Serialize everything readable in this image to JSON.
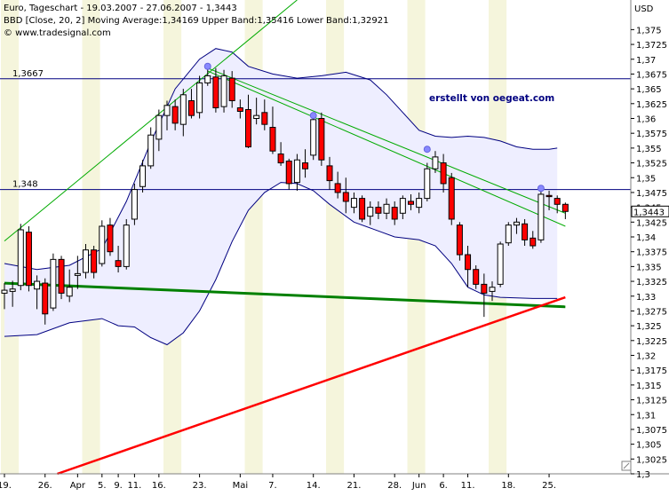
{
  "header": {
    "line1": "Euro, Tageschart - 19.03.2007 - 27.06.2007 - 1,3443",
    "line2": "BBD [Close, 20, 2] Moving Average:1,34169 Upper Band:1,35416 Lower Band:1,32921",
    "line3": "© www.tradesignal.com"
  },
  "annotation": {
    "credit": "erstellt von oegeat.com"
  },
  "colors": {
    "background": "#ffffff",
    "band_fill": "#eeeeff",
    "stripe": "#f5f5dc",
    "bear": "#ff0000",
    "bull": "#ffffff",
    "band_line": "#000080",
    "trend_green_thin": "#00aa00",
    "trend_green_thick": "#008000",
    "trend_red": "#ff0000",
    "pivot": "#8888ff"
  },
  "chart_data": {
    "type": "candlestick",
    "title": "Euro, Tageschart - 19.03.2007 - 27.06.2007 - 1,3443",
    "ylabel": "USD",
    "ylim": [
      1.3,
      1.38
    ],
    "y_ticks": [
      "1,375",
      "1,3725",
      "1,37",
      "1,3675",
      "1,365",
      "1,3625",
      "1,36",
      "1,3575",
      "1,355",
      "1,3525",
      "1,35",
      "1,3475",
      "1,345",
      "1,3425",
      "1,34",
      "1,3375",
      "1,335",
      "1,3325",
      "1,33",
      "1,3275",
      "1,325",
      "1,3225",
      "1,32",
      "1,3175",
      "1,315",
      "1,3125",
      "1,31",
      "1,3075",
      "1,305",
      "1,3025",
      "1,3"
    ],
    "x_tick_labels": [
      {
        "label": "19.",
        "day": 0
      },
      {
        "label": "26.",
        "day": 5
      },
      {
        "label": "Apr",
        "day": 9
      },
      {
        "label": "5.",
        "day": 12
      },
      {
        "label": "9.",
        "day": 14
      },
      {
        "label": "11.",
        "day": 16
      },
      {
        "label": "16.",
        "day": 19
      },
      {
        "label": "23.",
        "day": 24
      },
      {
        "label": "Mai",
        "day": 29
      },
      {
        "label": "7.",
        "day": 33
      },
      {
        "label": "14.",
        "day": 38
      },
      {
        "label": "21.",
        "day": 43
      },
      {
        "label": "28.",
        "day": 48
      },
      {
        "label": "Jun",
        "day": 51
      },
      {
        "label": "6.",
        "day": 54
      },
      {
        "label": "11.",
        "day": 57
      },
      {
        "label": "18.",
        "day": 62
      },
      {
        "label": "25.",
        "day": 67
      }
    ],
    "last_price": {
      "label": "1,3443",
      "value": 1.3443
    },
    "horizontal_lines": [
      {
        "label": "1,3667",
        "value": 1.3667
      },
      {
        "label": "1,348",
        "value": 1.348
      }
    ],
    "candles": [
      [
        1.3305,
        1.3322,
        1.3278,
        1.331
      ],
      [
        1.3308,
        1.3326,
        1.3282,
        1.3312
      ],
      [
        1.3318,
        1.3422,
        1.331,
        1.3412
      ],
      [
        1.3408,
        1.3418,
        1.3308,
        1.3318
      ],
      [
        1.3312,
        1.3335,
        1.3278,
        1.3325
      ],
      [
        1.3322,
        1.333,
        1.3252,
        1.327
      ],
      [
        1.328,
        1.3372,
        1.3275,
        1.3362
      ],
      [
        1.3362,
        1.3368,
        1.3295,
        1.3305
      ],
      [
        1.33,
        1.3345,
        1.329,
        1.3315
      ],
      [
        1.3335,
        1.3368,
        1.3312,
        1.3338
      ],
      [
        1.334,
        1.3388,
        1.333,
        1.3378
      ],
      [
        1.3378,
        1.3385,
        1.333,
        1.334
      ],
      [
        1.3355,
        1.3428,
        1.335,
        1.3418
      ],
      [
        1.342,
        1.3432,
        1.3368,
        1.3375
      ],
      [
        1.336,
        1.3385,
        1.334,
        1.335
      ],
      [
        1.335,
        1.343,
        1.3345,
        1.342
      ],
      [
        1.343,
        1.349,
        1.342,
        1.348
      ],
      [
        1.3485,
        1.353,
        1.3475,
        1.352
      ],
      [
        1.352,
        1.3585,
        1.3515,
        1.3572
      ],
      [
        1.3565,
        1.3615,
        1.3545,
        1.3605
      ],
      [
        1.3605,
        1.363,
        1.358,
        1.3622
      ],
      [
        1.362,
        1.3632,
        1.358,
        1.3592
      ],
      [
        1.359,
        1.365,
        1.357,
        1.364
      ],
      [
        1.363,
        1.365,
        1.36,
        1.3605
      ],
      [
        1.361,
        1.3672,
        1.36,
        1.366
      ],
      [
        1.366,
        1.369,
        1.3655,
        1.3672
      ],
      [
        1.367,
        1.3685,
        1.361,
        1.3618
      ],
      [
        1.362,
        1.3682,
        1.361,
        1.3672
      ],
      [
        1.3668,
        1.368,
        1.3618,
        1.363
      ],
      [
        1.3618,
        1.3632,
        1.36,
        1.3612
      ],
      [
        1.3615,
        1.364,
        1.355,
        1.3552
      ],
      [
        1.36,
        1.3635,
        1.359,
        1.3605
      ],
      [
        1.361,
        1.3632,
        1.358,
        1.359
      ],
      [
        1.3585,
        1.362,
        1.354,
        1.3545
      ],
      [
        1.354,
        1.356,
        1.352,
        1.3525
      ],
      [
        1.3528,
        1.3532,
        1.348,
        1.349
      ],
      [
        1.3492,
        1.354,
        1.3478,
        1.353
      ],
      [
        1.3525,
        1.3548,
        1.35,
        1.3515
      ],
      [
        1.3538,
        1.3605,
        1.353,
        1.3598
      ],
      [
        1.36,
        1.361,
        1.352,
        1.353
      ],
      [
        1.352,
        1.3535,
        1.348,
        1.3495
      ],
      [
        1.349,
        1.351,
        1.3465,
        1.3475
      ],
      [
        1.3475,
        1.35,
        1.344,
        1.346
      ],
      [
        1.345,
        1.3475,
        1.344,
        1.3465
      ],
      [
        1.3465,
        1.347,
        1.3425,
        1.343
      ],
      [
        1.3435,
        1.346,
        1.342,
        1.345
      ],
      [
        1.345,
        1.346,
        1.343,
        1.344
      ],
      [
        1.344,
        1.3465,
        1.343,
        1.3455
      ],
      [
        1.345,
        1.346,
        1.342,
        1.343
      ],
      [
        1.344,
        1.347,
        1.343,
        1.3465
      ],
      [
        1.346,
        1.3472,
        1.3445,
        1.3455
      ],
      [
        1.345,
        1.3475,
        1.344,
        1.3465
      ],
      [
        1.3465,
        1.3525,
        1.346,
        1.3515
      ],
      [
        1.3515,
        1.3545,
        1.3508,
        1.3535
      ],
      [
        1.3525,
        1.354,
        1.3475,
        1.349
      ],
      [
        1.35,
        1.3508,
        1.342,
        1.343
      ],
      [
        1.342,
        1.3425,
        1.336,
        1.337
      ],
      [
        1.337,
        1.3385,
        1.3315,
        1.3345
      ],
      [
        1.3345,
        1.3352,
        1.3312,
        1.332
      ],
      [
        1.332,
        1.3338,
        1.3265,
        1.3305
      ],
      [
        1.3308,
        1.3325,
        1.3292,
        1.3315
      ],
      [
        1.332,
        1.3392,
        1.3315,
        1.3388
      ],
      [
        1.339,
        1.3425,
        1.3385,
        1.342
      ],
      [
        1.342,
        1.3432,
        1.3405,
        1.3425
      ],
      [
        1.3422,
        1.343,
        1.3385,
        1.3395
      ],
      [
        1.3398,
        1.341,
        1.338,
        1.3385
      ],
      [
        1.3395,
        1.3478,
        1.339,
        1.3472
      ],
      [
        1.347,
        1.3478,
        1.3445,
        1.3468
      ],
      [
        1.3465,
        1.347,
        1.344,
        1.3455
      ],
      [
        1.3455,
        1.3458,
        1.343,
        1.3443
      ]
    ],
    "bollinger": {
      "upper": [
        [
          0,
          1.3355
        ],
        [
          4,
          1.3345
        ],
        [
          8,
          1.3352
        ],
        [
          12,
          1.338
        ],
        [
          15,
          1.346
        ],
        [
          18,
          1.356
        ],
        [
          21,
          1.365
        ],
        [
          24,
          1.37
        ],
        [
          26,
          1.3718
        ],
        [
          28,
          1.3712
        ],
        [
          30,
          1.3688
        ],
        [
          33,
          1.3675
        ],
        [
          36,
          1.3668
        ],
        [
          39,
          1.3672
        ],
        [
          42,
          1.3678
        ],
        [
          45,
          1.3665
        ],
        [
          47,
          1.364
        ],
        [
          49,
          1.361
        ],
        [
          51,
          1.358
        ],
        [
          53,
          1.357
        ],
        [
          55,
          1.3568
        ],
        [
          57,
          1.357
        ],
        [
          59,
          1.3568
        ],
        [
          61,
          1.3562
        ],
        [
          63,
          1.3552
        ],
        [
          65,
          1.3548
        ],
        [
          67,
          1.3548
        ],
        [
          68,
          1.355
        ]
      ],
      "lower": [
        [
          0,
          1.3232
        ],
        [
          4,
          1.3235
        ],
        [
          8,
          1.3255
        ],
        [
          12,
          1.3262
        ],
        [
          14,
          1.325
        ],
        [
          16,
          1.3248
        ],
        [
          18,
          1.323
        ],
        [
          20,
          1.3218
        ],
        [
          22,
          1.3238
        ],
        [
          24,
          1.3275
        ],
        [
          26,
          1.3328
        ],
        [
          28,
          1.3392
        ],
        [
          30,
          1.3445
        ],
        [
          32,
          1.3475
        ],
        [
          34,
          1.3492
        ],
        [
          36,
          1.349
        ],
        [
          38,
          1.3478
        ],
        [
          40,
          1.3455
        ],
        [
          43,
          1.3425
        ],
        [
          46,
          1.341
        ],
        [
          48,
          1.34
        ],
        [
          51,
          1.3395
        ],
        [
          53,
          1.3385
        ],
        [
          55,
          1.3355
        ],
        [
          57,
          1.3315
        ],
        [
          59,
          1.3302
        ],
        [
          61,
          1.3298
        ],
        [
          63,
          1.3297
        ],
        [
          65,
          1.3296
        ],
        [
          68,
          1.3296
        ]
      ]
    },
    "trendlines": [
      {
        "name": "channel-up",
        "color": "#00aa00",
        "width": 1,
        "points": [
          [
            0,
            1.3393
          ],
          [
            36,
            1.38
          ]
        ]
      },
      {
        "name": "channel-down-upper",
        "color": "#00aa00",
        "width": 1,
        "points": [
          [
            25,
            1.3685
          ],
          [
            69,
            1.344
          ]
        ]
      },
      {
        "name": "channel-down-lower",
        "color": "#00aa00",
        "width": 1,
        "points": [
          [
            25,
            1.368
          ],
          [
            69,
            1.3418
          ]
        ]
      },
      {
        "name": "support-green",
        "color": "#008000",
        "width": 3,
        "points": [
          [
            0,
            1.3322
          ],
          [
            69,
            1.3282
          ]
        ]
      },
      {
        "name": "support-red",
        "color": "#ff0000",
        "width": 2.5,
        "points": [
          [
            6.5,
            1.3
          ],
          [
            69,
            1.3298
          ]
        ]
      }
    ],
    "pivots": [
      [
        25,
        1.3688
      ],
      [
        38,
        1.3605
      ],
      [
        52,
        1.3548
      ],
      [
        66,
        1.3482
      ]
    ]
  }
}
